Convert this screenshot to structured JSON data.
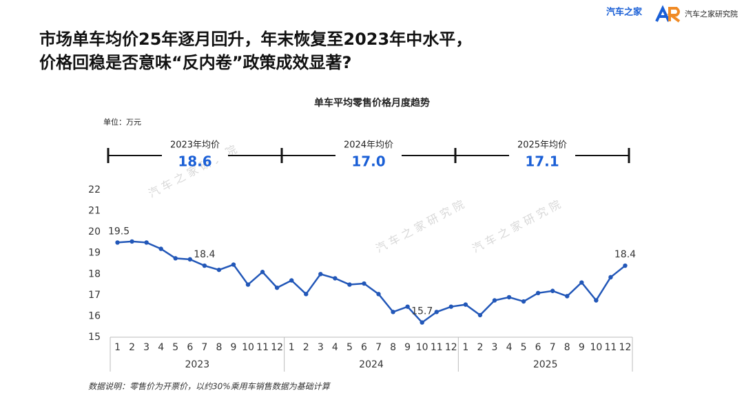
{
  "header": {
    "title_lines": [
      "市场单车均价25年逐月回升，年末恢复至2023年中水平，",
      "价格回稳是否意味“反内卷”政策成效显著?"
    ],
    "brand": "汽车之家",
    "institute": "汽车之家研究院"
  },
  "chart_data": {
    "type": "line",
    "title": "单车平均零售价格月度趋势",
    "unit": "单位：万元",
    "watermark": "汽 车 之 家 研 究 院",
    "categories": [
      "1",
      "2",
      "3",
      "4",
      "5",
      "6",
      "7",
      "8",
      "9",
      "10",
      "11",
      "12",
      "1",
      "2",
      "3",
      "4",
      "5",
      "6",
      "7",
      "8",
      "9",
      "10",
      "11",
      "12",
      "1",
      "2",
      "3",
      "4",
      "5",
      "6",
      "7",
      "8",
      "9",
      "10",
      "11",
      "12"
    ],
    "groups": [
      "2023",
      "2024",
      "2025"
    ],
    "series": [
      {
        "name": "单车平均零售价格",
        "color": "#2257b8",
        "values": [
          19.5,
          19.55,
          19.5,
          19.2,
          18.75,
          18.7,
          18.4,
          18.2,
          18.45,
          17.5,
          18.1,
          17.35,
          17.7,
          17.05,
          18.0,
          17.8,
          17.5,
          17.55,
          17.05,
          16.2,
          16.45,
          15.7,
          16.2,
          16.45,
          16.55,
          16.05,
          16.75,
          16.9,
          16.7,
          17.1,
          17.2,
          16.95,
          17.6,
          16.75,
          17.85,
          18.4
        ],
        "value_labels": [
          "19.5",
          null,
          null,
          null,
          null,
          null,
          "18.4",
          null,
          null,
          null,
          null,
          null,
          null,
          null,
          null,
          null,
          null,
          null,
          null,
          null,
          null,
          "15.7",
          null,
          null,
          null,
          null,
          null,
          null,
          null,
          null,
          null,
          null,
          null,
          null,
          null,
          "18.4"
        ]
      }
    ],
    "annual_averages": [
      {
        "label": "2023年均价",
        "value": 18.6
      },
      {
        "label": "2024年均价",
        "value": {
          "value": 17,
          "label": "17.0"
        }
      },
      {
        "label": "2025年均价",
        "value": 17.1
      }
    ],
    "ylim": [
      15,
      22
    ],
    "yticks": [
      15,
      16,
      17,
      18,
      19,
      20,
      21,
      22
    ],
    "grid": false,
    "footnote": "数据说明：零售价为开票价，以约30%乘用车销售数据为基础计算"
  }
}
